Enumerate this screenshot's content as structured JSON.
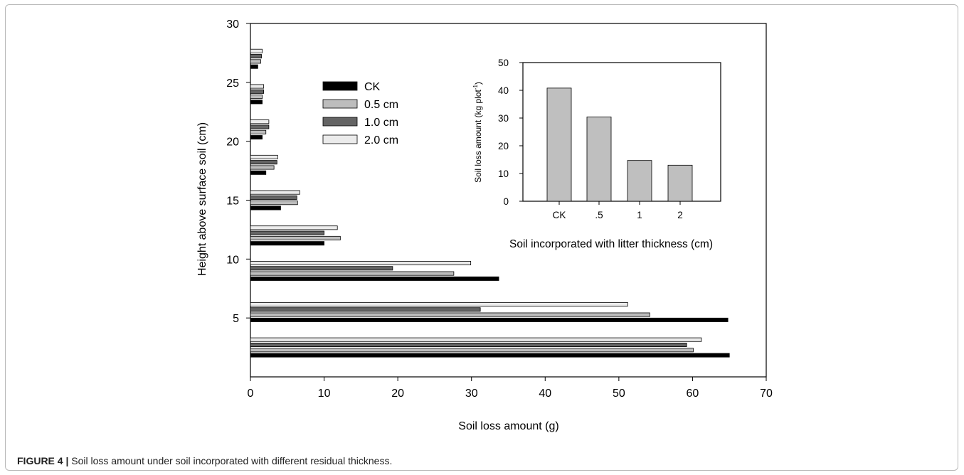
{
  "caption": {
    "label": "FIGURE 4 |",
    "text": " Soil loss amount under soil incorporated with different residual thickness."
  },
  "chart_data": [
    {
      "type": "bar",
      "orientation": "horizontal",
      "title": "",
      "xlabel": "Soil loss amount (g)",
      "ylabel": "Height above surface soil (cm)",
      "xlim": [
        0,
        70
      ],
      "ylim": [
        0,
        30
      ],
      "xticks": [
        "0",
        "10",
        "20",
        "30",
        "40",
        "50",
        "60",
        "70"
      ],
      "yticks": [
        "5",
        "10",
        "15",
        "20",
        "25",
        "30"
      ],
      "grid": false,
      "legend_position": "upper-left-center",
      "categories": [
        2.5,
        5.5,
        9,
        12,
        15,
        18,
        21,
        24,
        27
      ],
      "series": [
        {
          "name": "CK",
          "color": "#000000",
          "values": [
            65.0,
            64.8,
            33.7,
            10.0,
            4.1,
            2.1,
            1.6,
            1.6,
            1.0
          ]
        },
        {
          "name": "0.5 cm",
          "color": "#bdbdbd",
          "values": [
            60.1,
            54.2,
            27.6,
            12.2,
            6.4,
            3.2,
            2.1,
            1.6,
            1.4
          ]
        },
        {
          "name": "1.0 cm",
          "color": "#646464",
          "values": [
            59.2,
            31.2,
            19.3,
            10.0,
            6.3,
            3.6,
            2.5,
            1.8,
            1.5
          ]
        },
        {
          "name": "2.0 cm",
          "color": "#ebebeb",
          "values": [
            61.2,
            51.2,
            29.9,
            11.8,
            6.7,
            3.7,
            2.5,
            1.8,
            1.6
          ]
        }
      ]
    },
    {
      "type": "bar",
      "title": "",
      "xlabel": "Soil incorporated with litter thickness (cm)",
      "ylabel_main": "Soil loss amount (kg plot",
      "ylabel_sup": "-1",
      "ylabel_end": ")",
      "ylim": [
        0,
        50
      ],
      "yticks": [
        "0",
        "10",
        "20",
        "30",
        "40",
        "50"
      ],
      "categories": [
        "CK",
        ".5",
        "1",
        "2"
      ],
      "values": [
        40.8,
        30.4,
        14.7,
        13.0
      ],
      "color": "#bfbfbf"
    }
  ]
}
